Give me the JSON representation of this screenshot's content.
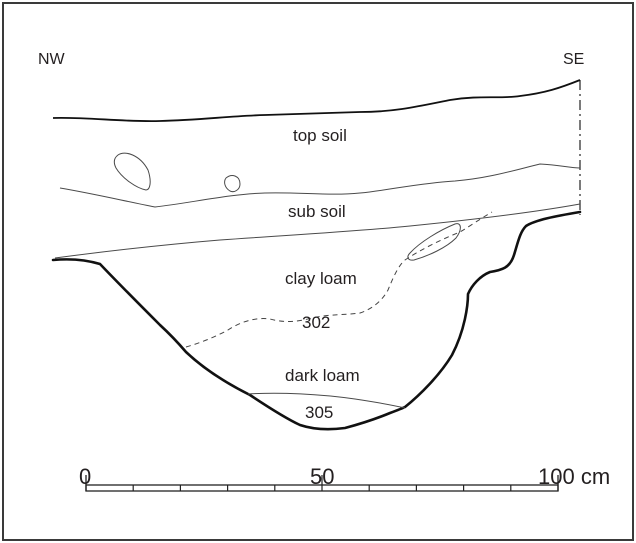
{
  "orientation": {
    "left": "NW",
    "right": "SE"
  },
  "layers": {
    "top_soil": "top soil",
    "sub_soil": "sub soil",
    "clay_loam": "clay loam",
    "context_302": "302",
    "dark_loam": "dark loam",
    "context_305": "305"
  },
  "scale_bar": {
    "tick_0": "0",
    "tick_50": "50",
    "tick_100": "100 cm",
    "minor_divisions": 10
  }
}
